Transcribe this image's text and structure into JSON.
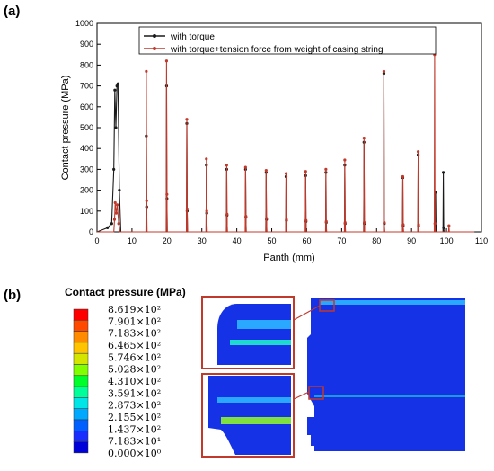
{
  "panel_a": {
    "label": "(a)"
  },
  "panel_b": {
    "label": "(b)"
  },
  "chart_data": {
    "type": "line",
    "title": "",
    "xlabel": "Panth (mm)",
    "ylabel": "Contact pressure (MPa)",
    "xlim": [
      0,
      110
    ],
    "ylim": [
      0,
      1000
    ],
    "xticks": [
      "0",
      "10",
      "20",
      "30",
      "40",
      "50",
      "60",
      "70",
      "80",
      "90",
      "100",
      "110"
    ],
    "yticks": [
      "0",
      "100",
      "200",
      "300",
      "400",
      "500",
      "600",
      "700",
      "800",
      "900",
      "1000"
    ],
    "grid": false,
    "legend_position": "top-right",
    "series": [
      {
        "name": "with torque",
        "color": "#1a1a1a",
        "marker": "circle",
        "x": [
          0,
          3,
          4.2,
          4.8,
          5.1,
          5.4,
          5.7,
          6.0,
          6.4,
          6.8,
          14,
          14.1,
          14.2,
          14.3,
          19.8,
          19.9,
          20.0,
          20.1,
          25.6,
          25.7,
          25.8,
          25.9,
          31.2,
          31.3,
          31.4,
          31.5,
          37,
          37.1,
          37.2,
          37.3,
          42.4,
          42.5,
          42.6,
          42.7,
          48.3,
          48.4,
          48.5,
          48.6,
          54,
          54.1,
          54.2,
          54.3,
          59.6,
          59.7,
          59.8,
          59.9,
          65.4,
          65.5,
          65.6,
          65.7,
          70.8,
          70.9,
          71.0,
          71.1,
          76.3,
          76.4,
          76.5,
          76.6,
          82,
          82.1,
          82.2,
          82.3,
          87.4,
          87.5,
          87.6,
          87.7,
          91.8,
          91.9,
          92.0,
          92.1,
          96.8,
          96.9,
          97.0,
          97.1,
          99.0,
          99.1,
          99.2,
          99.3,
          108
        ],
        "values": [
          0,
          20,
          40,
          300,
          680,
          500,
          700,
          710,
          200,
          0,
          0,
          460,
          120,
          0,
          0,
          700,
          160,
          0,
          0,
          520,
          100,
          0,
          0,
          320,
          90,
          0,
          0,
          300,
          80,
          0,
          0,
          300,
          70,
          0,
          0,
          285,
          60,
          0,
          0,
          265,
          55,
          0,
          0,
          270,
          50,
          0,
          0,
          285,
          45,
          0,
          0,
          320,
          40,
          0,
          0,
          430,
          40,
          0,
          0,
          760,
          40,
          0,
          0,
          260,
          30,
          0,
          0,
          370,
          30,
          0,
          0,
          190,
          30,
          0,
          0,
          285,
          20,
          0,
          0
        ]
      },
      {
        "name": "with torque+tension force from weight of casing string",
        "color": "#c0392b",
        "marker": "circle",
        "x": [
          0,
          4.8,
          5.0,
          5.2,
          5.5,
          5.8,
          6.2,
          6.6,
          14,
          14.1,
          14.2,
          14.3,
          19.8,
          19.9,
          20.0,
          20.1,
          25.6,
          25.7,
          25.8,
          25.9,
          31.2,
          31.3,
          31.4,
          31.5,
          37,
          37.1,
          37.2,
          37.3,
          42.4,
          42.5,
          42.6,
          42.7,
          48.3,
          48.4,
          48.5,
          48.6,
          54,
          54.1,
          54.2,
          54.3,
          59.6,
          59.7,
          59.8,
          59.9,
          65.4,
          65.5,
          65.6,
          65.7,
          70.8,
          70.9,
          71.0,
          71.1,
          76.3,
          76.4,
          76.5,
          76.6,
          82,
          82.1,
          82.2,
          82.3,
          87.4,
          87.5,
          87.6,
          87.7,
          91.8,
          91.9,
          92.0,
          92.1,
          96.5,
          96.6,
          96.7,
          96.8,
          100.6,
          100.7,
          100.8,
          108
        ],
        "values": [
          0,
          0,
          60,
          140,
          90,
          130,
          40,
          0,
          0,
          770,
          150,
          0,
          0,
          820,
          180,
          0,
          0,
          540,
          110,
          0,
          0,
          350,
          100,
          0,
          0,
          320,
          85,
          0,
          0,
          310,
          75,
          0,
          0,
          295,
          65,
          0,
          0,
          280,
          60,
          0,
          0,
          290,
          55,
          0,
          0,
          300,
          50,
          0,
          0,
          345,
          45,
          0,
          0,
          450,
          45,
          0,
          0,
          770,
          45,
          0,
          0,
          265,
          35,
          0,
          0,
          385,
          35,
          0,
          0,
          850,
          40,
          0,
          0,
          30,
          0,
          0
        ]
      }
    ]
  },
  "contour_legend": {
    "title": "Contact pressure (MPa)",
    "levels": [
      "8.619×10²",
      "7.901×10²",
      "7.183×10²",
      "6.465×10²",
      "5.746×10²",
      "5.028×10²",
      "4.310×10²",
      "3.591×10²",
      "2.873×10²",
      "2.155×10²",
      "1.437×10²",
      "7.183×10¹",
      "0.000×10⁰"
    ],
    "colors": [
      "#ff0000",
      "#ff4a00",
      "#ff8c00",
      "#ffc300",
      "#d4e600",
      "#7fff00",
      "#00ff2a",
      "#00ff99",
      "#00e5e5",
      "#00a8ff",
      "#0060ff",
      "#1a2dff",
      "#0000d8"
    ]
  },
  "fea_colors": {
    "body": "#1532e6",
    "band_light": "#2aa8ff",
    "band_cyan": "#1fd9d0",
    "band_green": "#7fe040",
    "callout": "#c0392b"
  }
}
